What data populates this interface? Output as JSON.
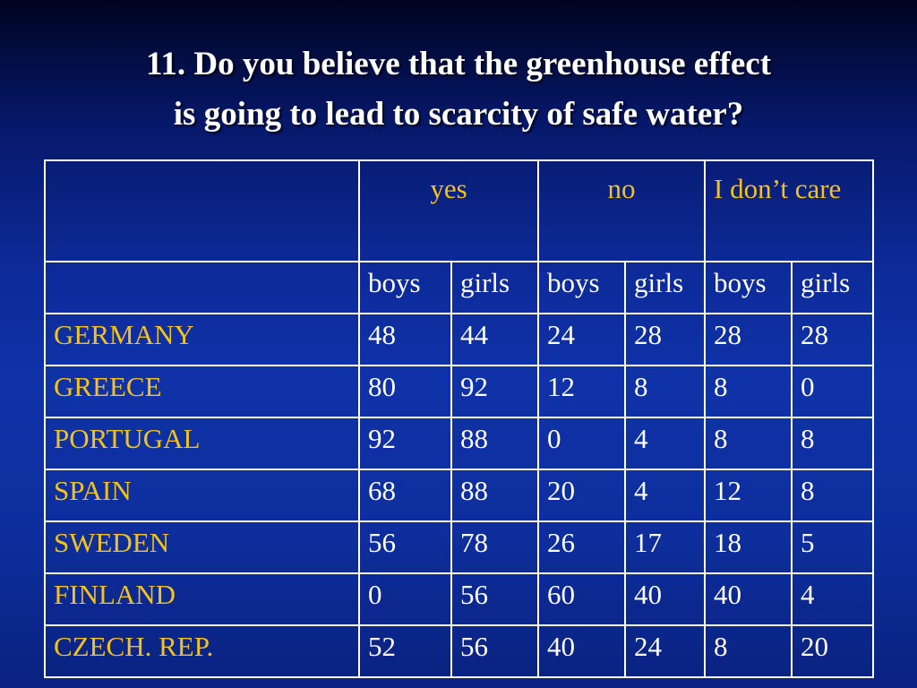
{
  "slide": {
    "title_line1": "11.  Do you believe that the greenhouse effect",
    "title_line2": "is going to lead to scarcity of safe water?"
  },
  "table": {
    "groups": [
      "yes",
      "no",
      "I don’t care"
    ],
    "subheaders": [
      "boys",
      "girls",
      "boys",
      "girls",
      "boys",
      "girls"
    ],
    "rows": [
      {
        "country": "GERMANY",
        "values": [
          "48",
          "44",
          "24",
          "28",
          "28",
          "28"
        ]
      },
      {
        "country": "GREECE",
        "values": [
          "80",
          "92",
          "12",
          "8",
          "8",
          "0"
        ]
      },
      {
        "country": "PORTUGAL",
        "values": [
          "92",
          "88",
          "0",
          "4",
          "8",
          "8"
        ]
      },
      {
        "country": "SPAIN",
        "values": [
          "68",
          "88",
          "20",
          "4",
          "12",
          "8"
        ]
      },
      {
        "country": "SWEDEN",
        "values": [
          "56",
          "78",
          "26",
          "17",
          "18",
          "5"
        ]
      },
      {
        "country": "FINLAND",
        "values": [
          "0",
          "56",
          "60",
          "40",
          "40",
          "4"
        ]
      },
      {
        "country": "CZECH. REP.",
        "values": [
          "52",
          "56",
          "40",
          "24",
          "8",
          "20"
        ]
      }
    ]
  },
  "colors": {
    "background": "#0d2b9a",
    "header_text": "#f4c21a",
    "body_text": "#ffffff",
    "border": "#ffffff"
  }
}
